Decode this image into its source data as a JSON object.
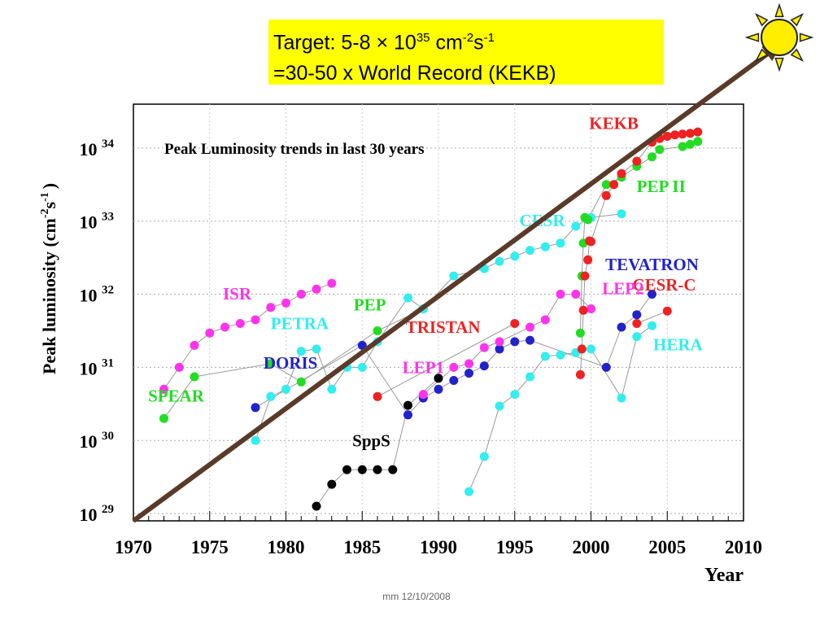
{
  "banner": {
    "line1_prefix": "Target:  5-8  ×  10",
    "line1_exp": "35",
    "line1_unit": " cm",
    "line1_unit_exp1": "-2",
    "line1_s": "s",
    "line1_unit_exp2": "-1",
    "line2": "=30-50 x World Record (KEKB)"
  },
  "footer": "mm 12/10/2008",
  "icon": "sun-icon",
  "colors": {
    "arrow": "#5a3a28",
    "banner": "#ffff00",
    "sun": "#ffee00"
  },
  "chart_data": {
    "type": "scatter",
    "title": "Peak Luminosity trends in last 30 years",
    "xlabel": "Year",
    "ylabel_base": "Peak luminosity (cm",
    "ylabel_exp1": "-2",
    "ylabel_mid": "s",
    "ylabel_exp2": "-1",
    "ylabel_end": ")",
    "xlim": [
      1970,
      2010
    ],
    "ylim_log10": [
      28.9,
      34.6
    ],
    "y_scale": "log",
    "x_ticks": [
      "1970",
      "1975",
      "1980",
      "1985",
      "1990",
      "1995",
      "2000",
      "2005",
      "2010"
    ],
    "y_ticks": [
      {
        "base": "10",
        "exp": "29",
        "v": 29
      },
      {
        "base": "10",
        "exp": "30",
        "v": 30
      },
      {
        "base": "10",
        "exp": "31",
        "v": 31
      },
      {
        "base": "10",
        "exp": "32",
        "v": 32
      },
      {
        "base": "10",
        "exp": "33",
        "v": 33
      },
      {
        "base": "10",
        "exp": "34",
        "v": 34
      }
    ],
    "grid": true,
    "trend_arrow": {
      "x": [
        1970,
        2010
      ],
      "log10y": [
        28.9,
        34.6
      ]
    },
    "series": [
      {
        "name": "SPEAR",
        "color": "#22dd22",
        "label_pos": [
          1972.8,
          30.53
        ],
        "x": [
          1972,
          1974,
          1979,
          1981,
          1986,
          1989
        ],
        "log10y": [
          30.3,
          30.87,
          31.05,
          30.8,
          31.5,
          31.8
        ]
      },
      {
        "name": "ISR",
        "color": "#ff33ee",
        "label_pos": [
          1976.8,
          31.93
        ],
        "x": [
          1972,
          1973,
          1974,
          1975,
          1976,
          1977,
          1978,
          1979,
          1980,
          1981,
          1982,
          1983
        ],
        "log10y": [
          30.7,
          31.0,
          31.3,
          31.47,
          31.55,
          31.6,
          31.65,
          31.82,
          31.88,
          32.0,
          32.07,
          32.15
        ]
      },
      {
        "name": "DORIS",
        "color": "#2222cc",
        "label_pos": [
          1980.3,
          30.98
        ],
        "x": [
          1978,
          1985,
          1988,
          1989,
          1990,
          1991,
          1992,
          1993,
          1994,
          1995,
          1996,
          2001,
          2002,
          2003,
          2004
        ],
        "log10y": [
          30.45,
          31.3,
          30.35,
          30.58,
          30.7,
          30.82,
          30.92,
          31.02,
          31.25,
          31.35,
          31.37,
          31.0,
          31.55,
          31.72,
          32.0
        ]
      },
      {
        "name": "PETRA",
        "color": "#33eeee",
        "label_pos": [
          1980.9,
          31.52
        ],
        "x": [
          1978,
          1979,
          1980,
          1981,
          1982,
          1983,
          1984,
          1985,
          1986,
          1988,
          1989,
          1991,
          1993,
          1994,
          1995,
          1996,
          1997,
          1998,
          1999,
          2000,
          2002
        ],
        "log10y": [
          30.0,
          30.6,
          30.7,
          31.22,
          31.25,
          30.7,
          31.0,
          31.0,
          31.35,
          31.95,
          31.8,
          32.25,
          32.35,
          32.45,
          32.52,
          32.6,
          32.65,
          32.7,
          32.93,
          33.05,
          33.1
        ]
      },
      {
        "name": "SppS",
        "color": "#000000",
        "label_pos": [
          1985.6,
          29.92
        ],
        "x": [
          1982,
          1983,
          1984,
          1985,
          1986,
          1987,
          1988,
          1990
        ],
        "log10y": [
          29.1,
          29.4,
          29.6,
          29.6,
          29.6,
          29.6,
          30.48,
          30.85
        ]
      },
      {
        "name": "PEP",
        "color": "#22dd22",
        "label_pos": [
          1985.5,
          31.78
        ],
        "x": [],
        "log10y": []
      },
      {
        "name": "TRISTAN",
        "color": "#ee2222",
        "label_pos": [
          1990.3,
          31.47
        ],
        "x": [
          1986,
          1995
        ],
        "log10y": [
          30.6,
          31.6
        ]
      },
      {
        "name": "LEP1",
        "color": "#ff33ee",
        "label_pos": [
          1989.0,
          30.92
        ],
        "x": [
          1989,
          1991,
          1992,
          1993,
          1994,
          1996,
          1997,
          1998,
          1999,
          2000
        ],
        "log10y": [
          30.63,
          31.0,
          31.05,
          31.27,
          31.35,
          31.55,
          31.65,
          32.0,
          32.0,
          31.8
        ]
      },
      {
        "name": "HERA",
        "color": "#33eeee",
        "label_pos": [
          2005.7,
          31.23
        ],
        "x": [
          1992,
          1993,
          1994,
          1995,
          1996,
          1997,
          1998,
          1999,
          2000,
          2002,
          2003,
          2004
        ],
        "log10y": [
          29.3,
          29.78,
          30.47,
          30.63,
          30.87,
          31.15,
          31.17,
          31.2,
          31.25,
          30.58,
          31.42,
          31.57
        ]
      },
      {
        "name": "PEP II",
        "color": "#22dd22",
        "label_pos": [
          2004.6,
          33.4
        ],
        "x": [
          1999.3,
          1999.4,
          1999.5,
          1999.6,
          1999.8,
          2001,
          2002,
          2003,
          2004,
          2004.5,
          2006,
          2006.5,
          2007
        ],
        "log10y": [
          31.47,
          32.25,
          32.7,
          33.05,
          33.02,
          33.5,
          33.6,
          33.75,
          33.88,
          33.98,
          34.02,
          34.05,
          34.09
        ]
      },
      {
        "name": "KEKB",
        "color": "#ee2222",
        "label_pos": [
          2001.5,
          34.26
        ],
        "x": [
          1999.3,
          1999.4,
          1999.5,
          1999.6,
          1999.8,
          1999.9,
          2000,
          2001,
          2001.5,
          2002,
          2003,
          2004,
          2004.5,
          2005,
          2005.5,
          2006,
          2006.5,
          2007
        ],
        "log10y": [
          30.9,
          31.25,
          31.78,
          32.25,
          32.47,
          32.73,
          32.72,
          33.35,
          33.5,
          33.65,
          33.82,
          34.08,
          34.13,
          34.16,
          34.18,
          34.19,
          34.2,
          34.22
        ]
      },
      {
        "name": "CESR-C",
        "color": "#ee2222",
        "label_pos": [
          2004.8,
          32.05
        ],
        "x": [
          2003,
          2005
        ],
        "log10y": [
          31.6,
          31.77
        ]
      },
      {
        "name": "LEP2",
        "color": "#ff33ee",
        "label_pos": [
          2002.1,
          32.0
        ],
        "x": [],
        "log10y": []
      },
      {
        "name": "TEVATRON",
        "color": "#2222cc",
        "label_pos": [
          2004.0,
          32.33
        ],
        "x": [],
        "log10y": []
      },
      {
        "name": "CESR",
        "color": "#33eeee",
        "label_pos": [
          1996.8,
          32.93
        ],
        "x": [],
        "log10y": []
      }
    ]
  }
}
